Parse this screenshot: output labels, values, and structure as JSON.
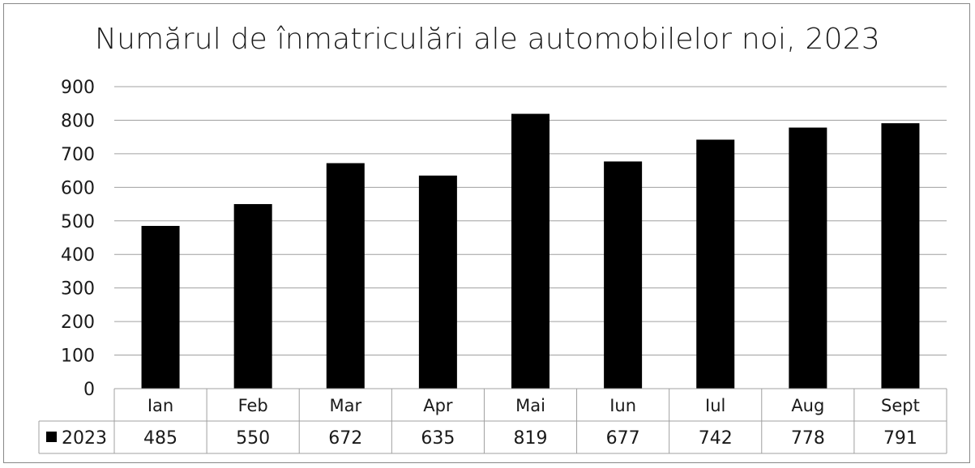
{
  "chart_data": {
    "type": "bar",
    "title": "Numărul de înmatriculări ale automobilelor noi, 2023",
    "categories": [
      "Ian",
      "Feb",
      "Mar",
      "Apr",
      "Mai",
      "Iun",
      "Iul",
      "Aug",
      "Sept"
    ],
    "series": [
      {
        "name": "2023",
        "values": [
          485,
          550,
          672,
          635,
          819,
          677,
          742,
          778,
          791
        ],
        "color": "#000000"
      }
    ],
    "ylim": [
      0,
      900
    ],
    "yticks": [
      0,
      100,
      200,
      300,
      400,
      500,
      600,
      700,
      800,
      900
    ],
    "xlabel": "",
    "ylabel": "",
    "grid": true,
    "legend": "data-table",
    "data_table": true
  }
}
